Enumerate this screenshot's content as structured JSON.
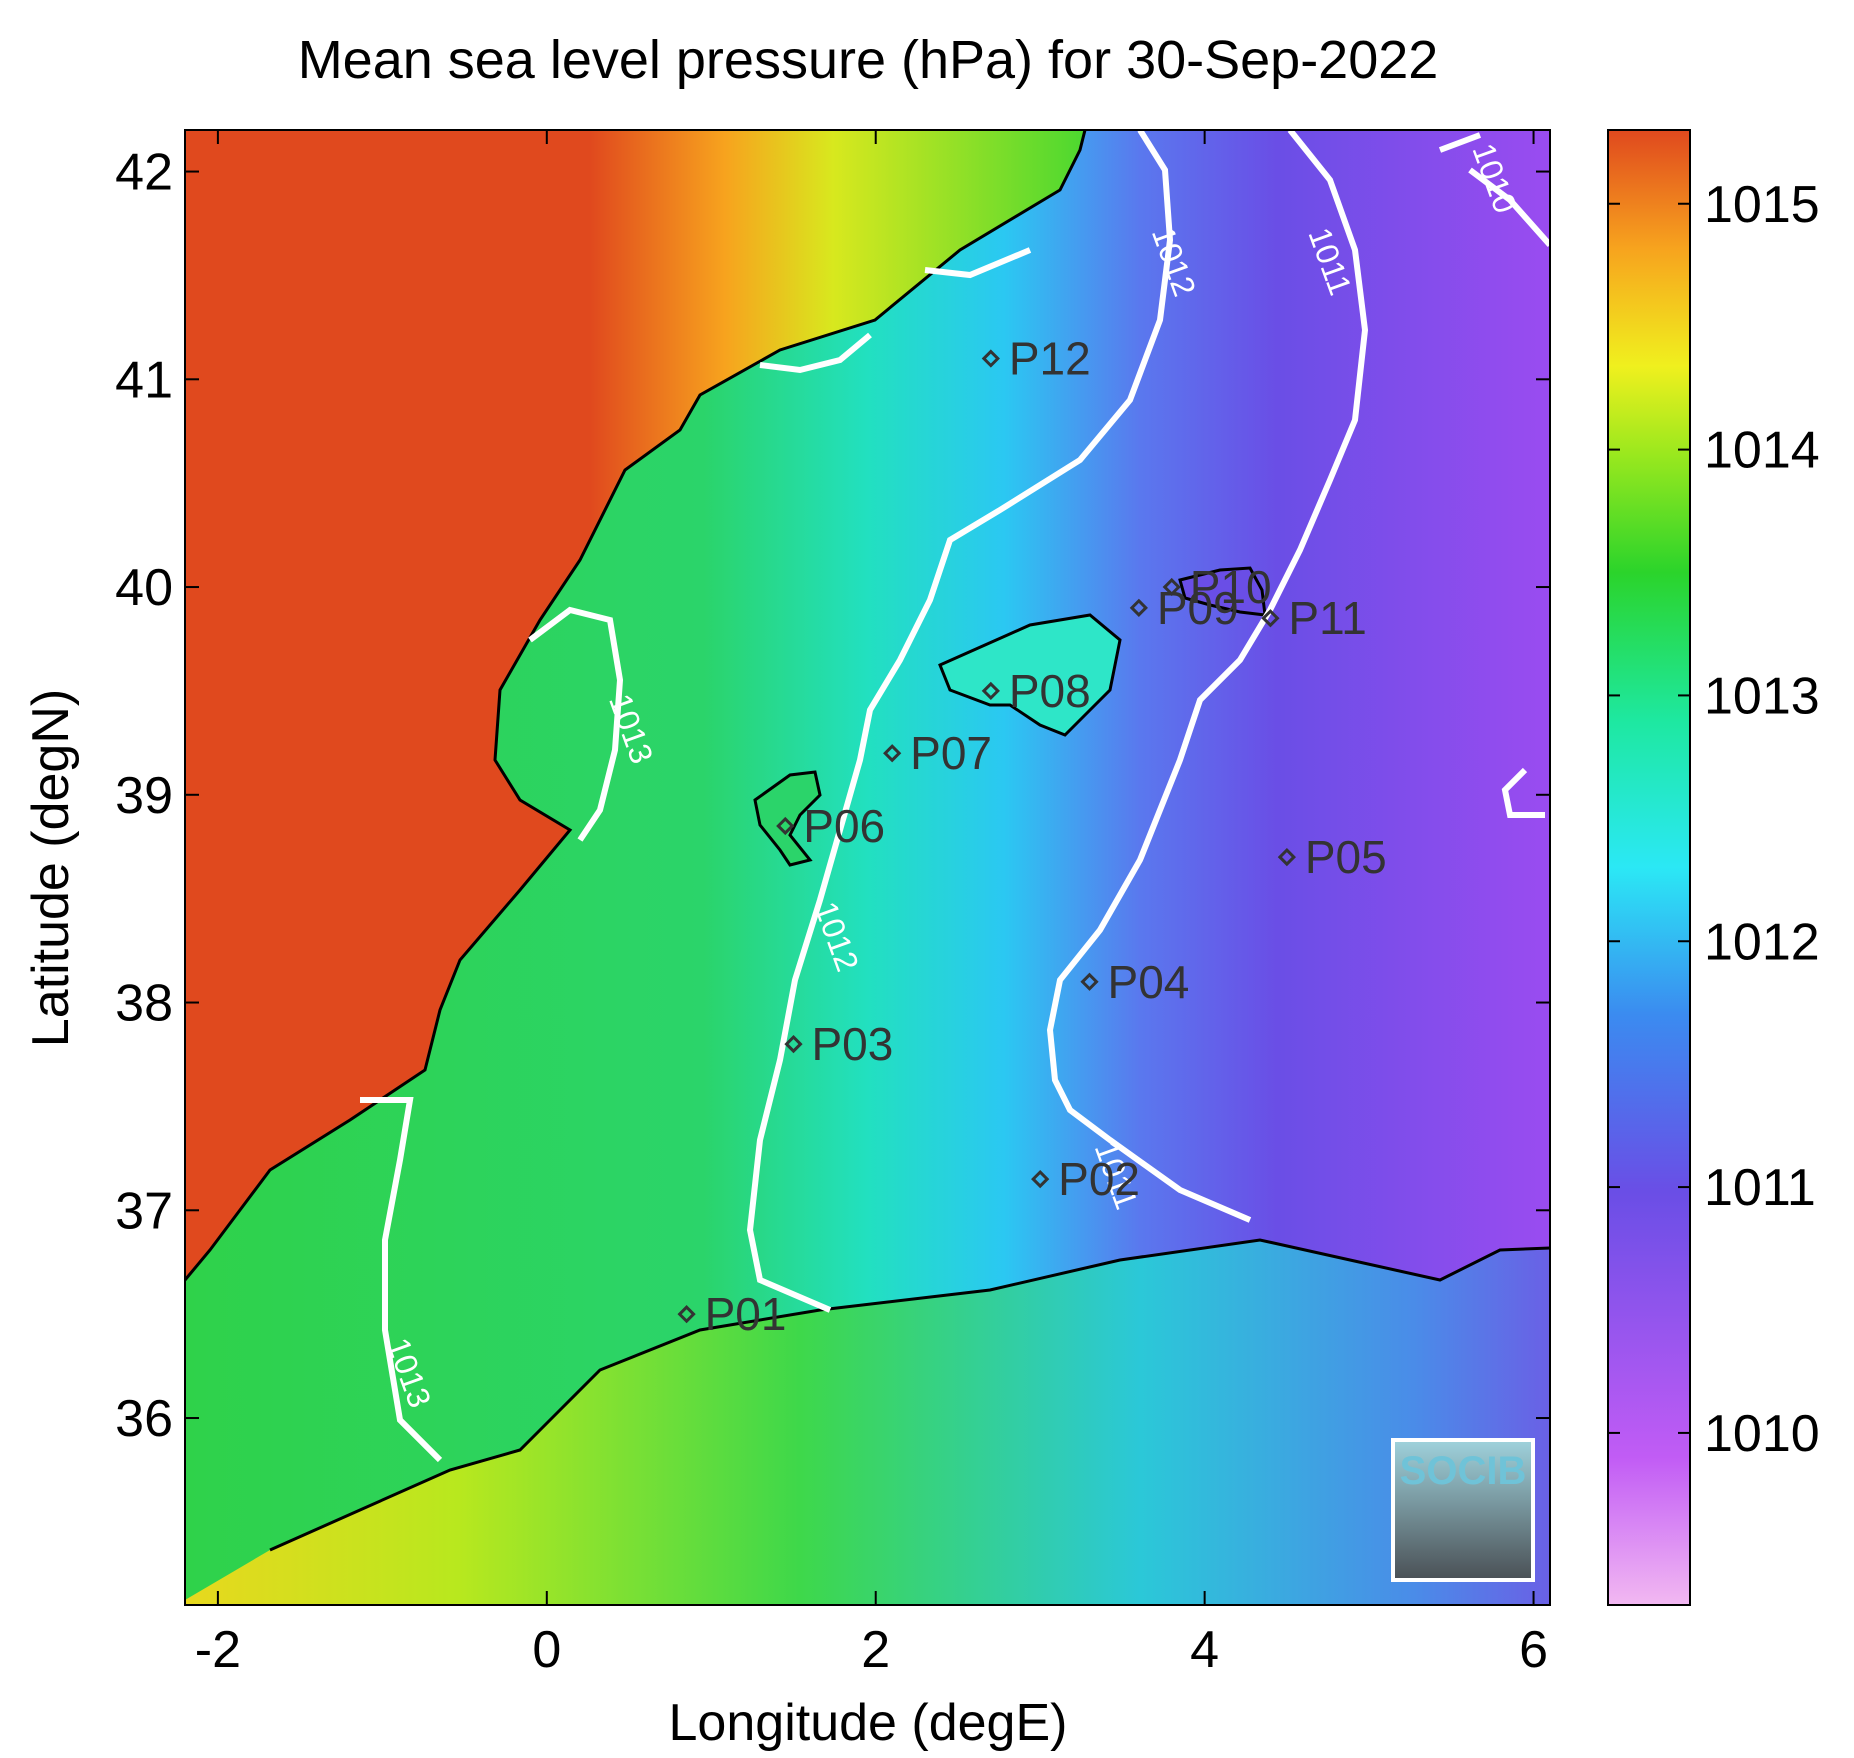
{
  "title": "Mean sea level pressure (hPa) for 30-Sep-2022",
  "xlabel": "Longitude (degE)",
  "ylabel": "Latitude (degN)",
  "logo_text": "SOCIB",
  "chart_data": {
    "type": "heatmap",
    "title": "Mean sea level pressure (hPa) for 30-Sep-2022",
    "xlabel": "Longitude (degE)",
    "ylabel": "Latitude (degN)",
    "xlim": [
      -2.2,
      6.1
    ],
    "ylim": [
      35.1,
      42.2
    ],
    "xticks": [
      -2,
      0,
      2,
      4,
      6
    ],
    "yticks": [
      36,
      37,
      38,
      39,
      40,
      41,
      42
    ],
    "colorbar": {
      "range": [
        1009.3,
        1015.3
      ],
      "ticks": [
        1010,
        1011,
        1012,
        1013,
        1014,
        1015
      ],
      "colors": [
        "#f2b8f2",
        "#b44ef5",
        "#6a4ee6",
        "#3b8bf0",
        "#2be8f5",
        "#1ee8a0",
        "#2bd42b",
        "#9ae81e",
        "#f0f01e",
        "#f7a31e",
        "#e0491e"
      ]
    },
    "contour_levels": [
      1010,
      1011,
      1012,
      1013
    ],
    "contour_labels": [
      {
        "text": "1010",
        "lon": 5.7,
        "lat": 41.95
      },
      {
        "text": "1011",
        "lon": 4.7,
        "lat": 41.55
      },
      {
        "text": "1012",
        "lon": 3.75,
        "lat": 41.55
      },
      {
        "text": "1013",
        "lon": 0.45,
        "lat": 39.3
      },
      {
        "text": "1012",
        "lon": 1.7,
        "lat": 38.3
      },
      {
        "text": "1011",
        "lon": 3.4,
        "lat": 37.15
      },
      {
        "text": "1013",
        "lon": -0.9,
        "lat": 36.2
      }
    ],
    "stations": [
      {
        "name": "P01",
        "lon": 0.85,
        "lat": 36.5
      },
      {
        "name": "P02",
        "lon": 3.0,
        "lat": 37.15
      },
      {
        "name": "P03",
        "lon": 1.5,
        "lat": 37.8
      },
      {
        "name": "P04",
        "lon": 3.3,
        "lat": 38.1
      },
      {
        "name": "P05",
        "lon": 4.5,
        "lat": 38.7
      },
      {
        "name": "P06",
        "lon": 1.45,
        "lat": 38.85
      },
      {
        "name": "P07",
        "lon": 2.1,
        "lat": 39.2
      },
      {
        "name": "P08",
        "lon": 2.7,
        "lat": 39.5
      },
      {
        "name": "P09",
        "lon": 3.6,
        "lat": 39.9
      },
      {
        "name": "P10",
        "lon": 3.8,
        "lat": 40.0
      },
      {
        "name": "P11",
        "lon": 4.4,
        "lat": 39.85
      },
      {
        "name": "P12",
        "lon": 2.7,
        "lat": 41.1
      }
    ]
  }
}
